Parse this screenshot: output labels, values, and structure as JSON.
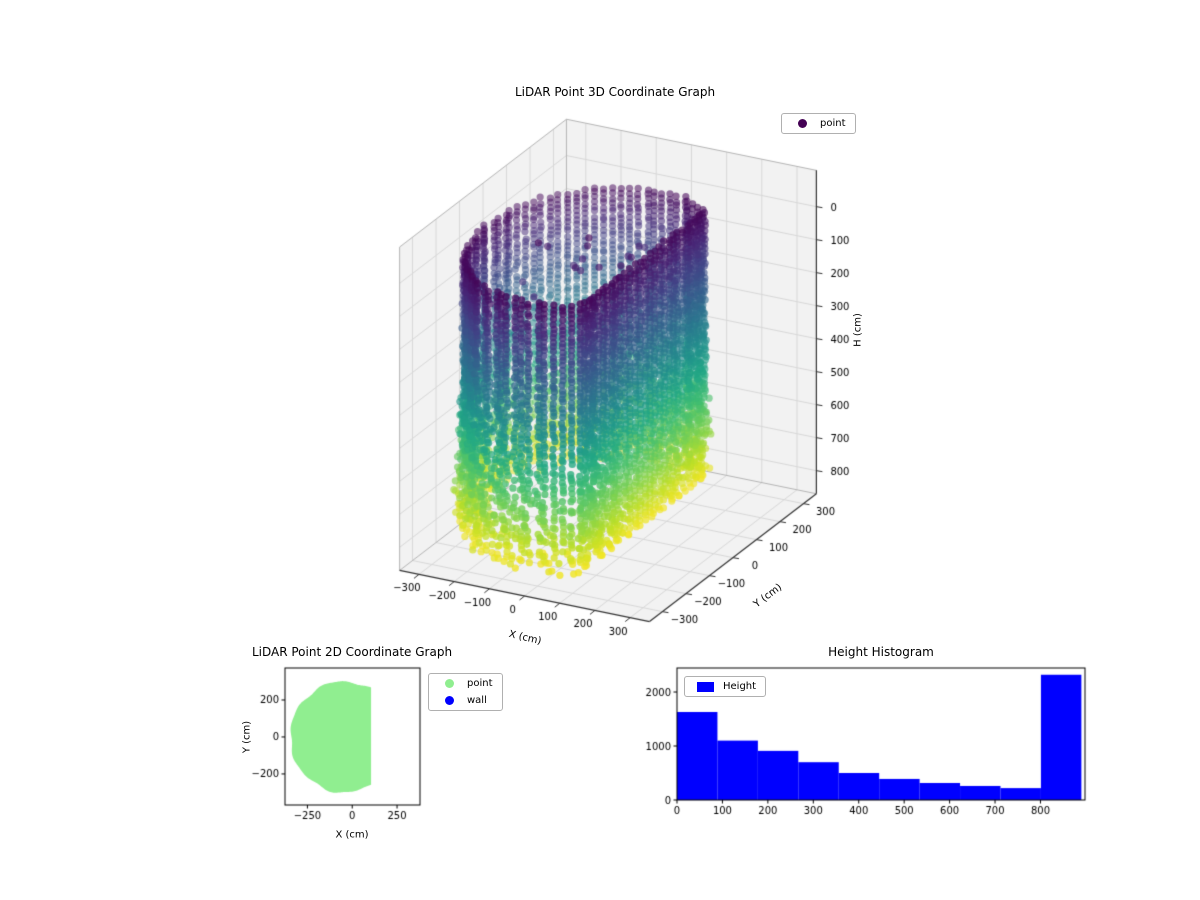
{
  "figure": {
    "background": "#ffffff"
  },
  "chart_data": [
    {
      "id": "plot3d",
      "type": "scatter3d",
      "title": "LiDAR Point 3D Coordinate Graph",
      "xlabel": "X (cm)",
      "ylabel": "Y (cm)",
      "zlabel": "H (cm)",
      "legend": [
        {
          "label": "point",
          "color": "#440154",
          "marker": "dot"
        }
      ],
      "xticks": [
        -300,
        -200,
        -100,
        0,
        100,
        200,
        300
      ],
      "yticks": [
        -300,
        -200,
        -100,
        0,
        100,
        200,
        300
      ],
      "zticks": [
        0,
        100,
        200,
        300,
        400,
        500,
        600,
        700,
        800
      ],
      "xlim": [
        -355,
        355
      ],
      "ylim": [
        -355,
        355
      ],
      "hlim": [
        -110,
        870
      ],
      "h_axis_inverted": true,
      "grid": true,
      "cloud": {
        "description": "cylindrical LiDAR wall scan, points colored by height H with viridis (H=0 dark purple at top, H=820 yellow at bottom), flat wall at x=105",
        "center": [
          -45,
          0
        ],
        "radius": 300,
        "wall_x": 105,
        "h_range": [
          15,
          820
        ],
        "columns": 88,
        "dh": 14,
        "stray_top_points": 18,
        "point_size": 3.6
      },
      "colormap": [
        [
          0,
          "#440154"
        ],
        [
          0.1,
          "#482475"
        ],
        [
          0.2,
          "#414487"
        ],
        [
          0.3,
          "#355f8d"
        ],
        [
          0.4,
          "#2a788e"
        ],
        [
          0.5,
          "#21918c"
        ],
        [
          0.6,
          "#22a884"
        ],
        [
          0.7,
          "#44bf70"
        ],
        [
          0.8,
          "#7ad151"
        ],
        [
          0.9,
          "#bddf26"
        ],
        [
          1,
          "#fde725"
        ]
      ]
    },
    {
      "id": "plot2d",
      "type": "scatter",
      "title": "LiDAR Point 2D Coordinate Graph",
      "xlabel": "X (cm)",
      "ylabel": "Y (cm)",
      "legend": [
        {
          "label": "point",
          "color": "#90ee90",
          "marker": "dot"
        },
        {
          "label": "wall",
          "color": "#0000ff",
          "marker": "dot"
        }
      ],
      "xticks": [
        -250,
        0,
        250
      ],
      "yticks": [
        200,
        0,
        -200
      ],
      "xlim": [
        -375,
        378
      ],
      "ylim": [
        -368,
        373
      ],
      "blob": {
        "description": "dense light-green point region: circle of radius 300 centered at (-45,0), clipped by wall at x=105",
        "center": [
          -45,
          0
        ],
        "radius": 300,
        "wall_x": 105,
        "fill": "#90ee90"
      }
    },
    {
      "id": "histogram",
      "type": "histogram",
      "title": "Height Histogram",
      "legend": [
        {
          "label": "Height",
          "color": "#0000ff",
          "marker": "rect"
        }
      ],
      "bar_color": "#0000ff",
      "bin_edges": [
        0,
        89,
        178,
        267,
        356,
        445,
        534,
        623,
        712,
        801,
        890
      ],
      "counts": [
        1630,
        1100,
        910,
        700,
        500,
        390,
        315,
        260,
        220,
        2320
      ],
      "xticks": [
        0,
        100,
        200,
        300,
        400,
        500,
        600,
        700,
        800
      ],
      "yticks": [
        0,
        1000,
        2000
      ],
      "xlim": [
        0,
        898
      ],
      "ylim": [
        0,
        2445
      ]
    }
  ]
}
